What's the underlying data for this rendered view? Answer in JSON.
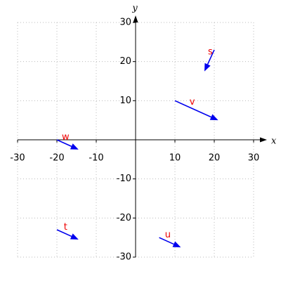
{
  "chart_data": {
    "type": "quiver",
    "xlabel": "x",
    "ylabel": "y",
    "xlim": [
      -30,
      30
    ],
    "ylim": [
      -30,
      30
    ],
    "xticks": [
      -30,
      -20,
      -10,
      10,
      20,
      30
    ],
    "yticks": [
      -30,
      -20,
      -10,
      10,
      20,
      30
    ],
    "grid": true,
    "arrow_color": "#0000ee",
    "label_color": "#ee0000",
    "vectors": [
      {
        "name": "s",
        "x": 20,
        "y": 23,
        "dx": -2.5,
        "dy": -5.5
      },
      {
        "name": "v",
        "x": 10,
        "y": 10,
        "dx": 11,
        "dy": -5
      },
      {
        "name": "w",
        "x": -20,
        "y": 0,
        "dx": 5.5,
        "dy": -2.5
      },
      {
        "name": "t",
        "x": -20,
        "y": -23,
        "dx": 5.5,
        "dy": -2.5
      },
      {
        "name": "u",
        "x": 6,
        "y": -25,
        "dx": 5.5,
        "dy": -2.5
      }
    ]
  }
}
